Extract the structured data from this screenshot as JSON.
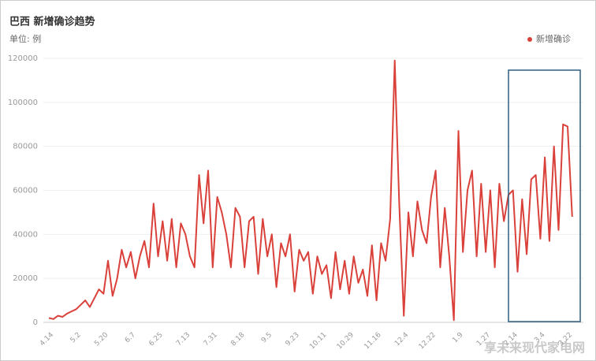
{
  "chart_data": {
    "type": "line",
    "title": "巴西 新增确诊趋势",
    "subtitle": "单位: 例",
    "watermark": "享未来现代家电网",
    "categories": [
      "4.14",
      null,
      null,
      null,
      null,
      null,
      "5.2",
      null,
      null,
      null,
      null,
      null,
      "5.20",
      null,
      null,
      null,
      null,
      null,
      "6.7",
      null,
      null,
      null,
      null,
      null,
      "6.25",
      null,
      null,
      null,
      null,
      null,
      "7.13",
      null,
      null,
      null,
      null,
      null,
      "7.31",
      null,
      null,
      null,
      null,
      null,
      "8.18",
      null,
      null,
      null,
      null,
      null,
      "9.5",
      null,
      null,
      null,
      null,
      null,
      "9.23",
      null,
      null,
      null,
      null,
      null,
      "10.11",
      null,
      null,
      null,
      null,
      null,
      "10.29",
      null,
      null,
      null,
      null,
      null,
      "11.16",
      null,
      null,
      null,
      null,
      null,
      "12.4",
      null,
      null,
      null,
      null,
      null,
      "12.22",
      null,
      null,
      null,
      null,
      null,
      "1.9",
      null,
      null,
      null,
      null,
      null,
      "1.27",
      null,
      null,
      null,
      null,
      null,
      "2.14",
      null,
      null,
      null,
      null,
      null,
      "3.4",
      null,
      null,
      null,
      null,
      null,
      "3.22",
      null
    ],
    "series": [
      {
        "name": "新增确诊",
        "color": "#d9413a",
        "values": [
          2000,
          1500,
          3000,
          2500,
          4000,
          5000,
          6000,
          8000,
          10000,
          7000,
          11000,
          15000,
          13000,
          28000,
          12000,
          20000,
          33000,
          25000,
          32000,
          20000,
          30000,
          37000,
          25000,
          54000,
          30000,
          46000,
          28000,
          47000,
          25000,
          45000,
          40000,
          30000,
          25000,
          67000,
          45000,
          69000,
          25000,
          57000,
          50000,
          40000,
          25000,
          52000,
          48000,
          25000,
          46000,
          48000,
          22000,
          47000,
          30000,
          40000,
          16000,
          36000,
          30000,
          40000,
          14000,
          33000,
          28000,
          32000,
          13000,
          30000,
          22000,
          26000,
          11000,
          32000,
          15000,
          28000,
          13000,
          30000,
          18000,
          24000,
          12000,
          35000,
          10000,
          36000,
          28000,
          47000,
          119000,
          54000,
          3000,
          50000,
          30000,
          55000,
          42000,
          36000,
          57000,
          69000,
          25000,
          52000,
          30000,
          1000,
          87000,
          32000,
          60000,
          69000,
          30000,
          63000,
          32000,
          60000,
          25000,
          63000,
          46000,
          58000,
          60000,
          23000,
          56000,
          31000,
          65000,
          67000,
          38000,
          75000,
          37000,
          80000,
          42000,
          90000,
          89000,
          48000
        ]
      }
    ],
    "ylim": [
      0,
      120000
    ],
    "yticks": [
      0,
      20000,
      40000,
      60000,
      80000,
      100000,
      120000
    ],
    "grid": true,
    "legend": "top-right"
  }
}
